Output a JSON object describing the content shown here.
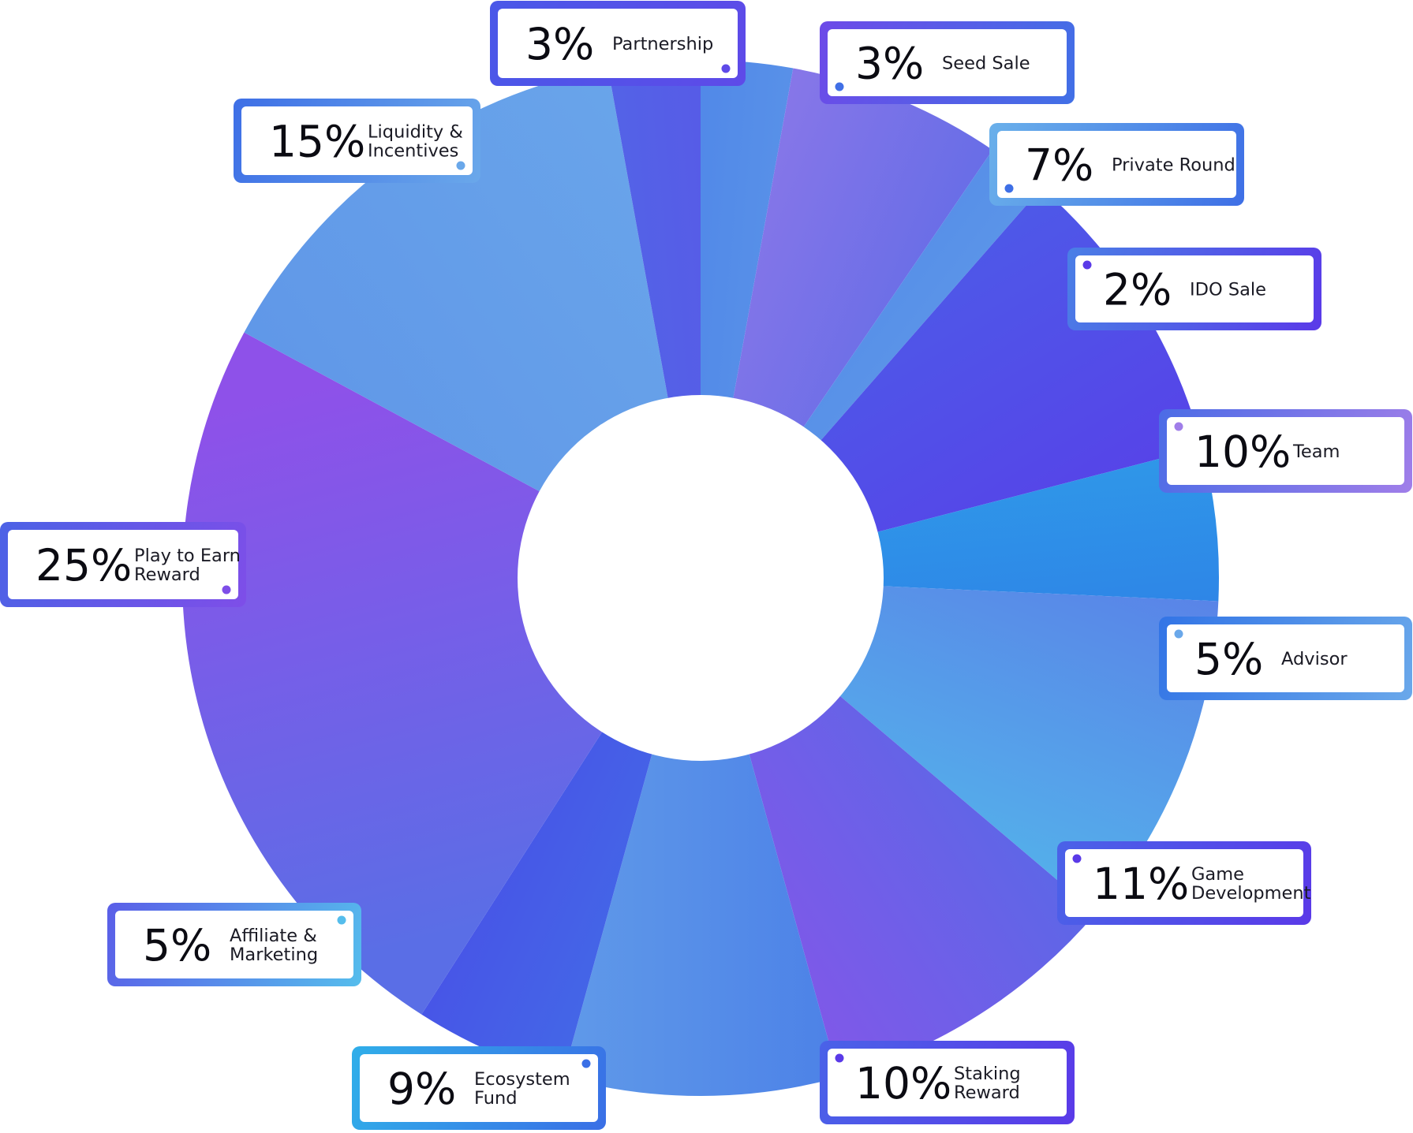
{
  "chart_data": {
    "type": "pie",
    "title": "",
    "categories": [
      "Seed Sale",
      "Private Round",
      "IDO Sale",
      "Team",
      "Advisor",
      "Game Development",
      "Staking Reward",
      "Ecosystem Fund",
      "Affiliate & Marketing",
      "Play to Earn Reward",
      "Liquidity & Incentives",
      "Partnership"
    ],
    "values": [
      3,
      7,
      2,
      10,
      5,
      11,
      10,
      9,
      5,
      25,
      15,
      3
    ],
    "value_labels": [
      "3%",
      "7%",
      "2%",
      "10%",
      "5%",
      "11%",
      "10%",
      "9%",
      "5%",
      "25%",
      "15%",
      "3%"
    ],
    "label_lines": [
      [
        "Seed Sale"
      ],
      [
        "Private Round"
      ],
      [
        "IDO Sale"
      ],
      [
        "Team"
      ],
      [
        "Advisor"
      ],
      [
        "Game",
        "Development"
      ],
      [
        "Staking",
        "Reward"
      ],
      [
        "Ecosystem",
        "Fund"
      ],
      [
        "Affiliate &",
        "Marketing"
      ],
      [
        "Play to Earn",
        "Reward"
      ],
      [
        "Liquidity &",
        "Incentives"
      ],
      [
        "Partnership"
      ]
    ],
    "start_position": "top, clockwise",
    "legend": "callout boxes around the ring",
    "colors": [
      [
        "#3f73e6",
        "#6aa6ea"
      ],
      [
        "#a07ee9",
        "#4f66e6"
      ],
      [
        "#4b7fe6",
        "#67a5ea"
      ],
      [
        "#4a62e8",
        "#5a3ae8"
      ],
      [
        "#30aee9",
        "#2d6fe6"
      ],
      [
        "#5b74e6",
        "#52c0ec"
      ],
      [
        "#4d6de6",
        "#8f52e9"
      ],
      [
        "#4275e6",
        "#6aa6ea"
      ],
      [
        "#3f7de6",
        "#4c3fe8"
      ],
      [
        "#5a6ee6",
        "#8e51e9"
      ],
      [
        "#5f96e8",
        "#6aa6ea"
      ],
      [
        "#4d74e6",
        "#5d4ae8"
      ]
    ],
    "box_frame_colors": [
      [
        "#6d4ae8",
        "#4170e6"
      ],
      [
        "#6ab0ea",
        "#3e6fe6"
      ],
      [
        "#4a7fe6",
        "#5a3ae8"
      ],
      [
        "#4b6ce6",
        "#a07ee9"
      ],
      [
        "#3274e6",
        "#6aa8ea"
      ],
      [
        "#4a62e8",
        "#5a3ae8"
      ],
      [
        "#4a62e8",
        "#5a3ae8"
      ],
      [
        "#30aee9",
        "#3a6fe6"
      ],
      [
        "#5a5ee8",
        "#55bdec"
      ],
      [
        "#4c62e6",
        "#7e4ee8"
      ],
      [
        "#3e6fe6",
        "#6aa8ea"
      ],
      [
        "#4a58e8",
        "#5e4ae8"
      ]
    ]
  }
}
